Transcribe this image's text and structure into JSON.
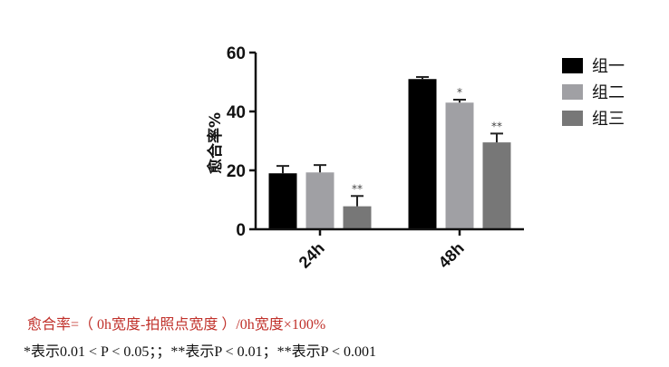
{
  "chart_data": {
    "type": "bar",
    "title": "",
    "xlabel": "",
    "ylabel": "愈合率%",
    "ylim": [
      0,
      60
    ],
    "yticks": [
      0,
      20,
      40,
      60
    ],
    "categories": [
      "24h",
      "48h"
    ],
    "series": [
      {
        "name": "组一",
        "color": "#000000",
        "values": [
          19.0,
          51.0
        ],
        "errors": [
          2.5,
          0.7
        ],
        "significance": [
          "",
          ""
        ]
      },
      {
        "name": "组二",
        "color": "#a0a0a4",
        "values": [
          19.3,
          43.0
        ],
        "errors": [
          2.5,
          1.0
        ],
        "significance": [
          "",
          "*"
        ]
      },
      {
        "name": "组三",
        "color": "#777777",
        "values": [
          7.8,
          29.5
        ],
        "errors": [
          3.5,
          3.0
        ],
        "significance": [
          "**",
          "**"
        ]
      }
    ],
    "legend_position": "right",
    "grid": false
  },
  "notes": {
    "formula": "愈合率=（ 0h宽度-拍照点宽度 ）/0h宽度×100%",
    "significance": "*表示0.01 < P < 0.05；；**表示P < 0.01；**表示P < 0.001"
  }
}
